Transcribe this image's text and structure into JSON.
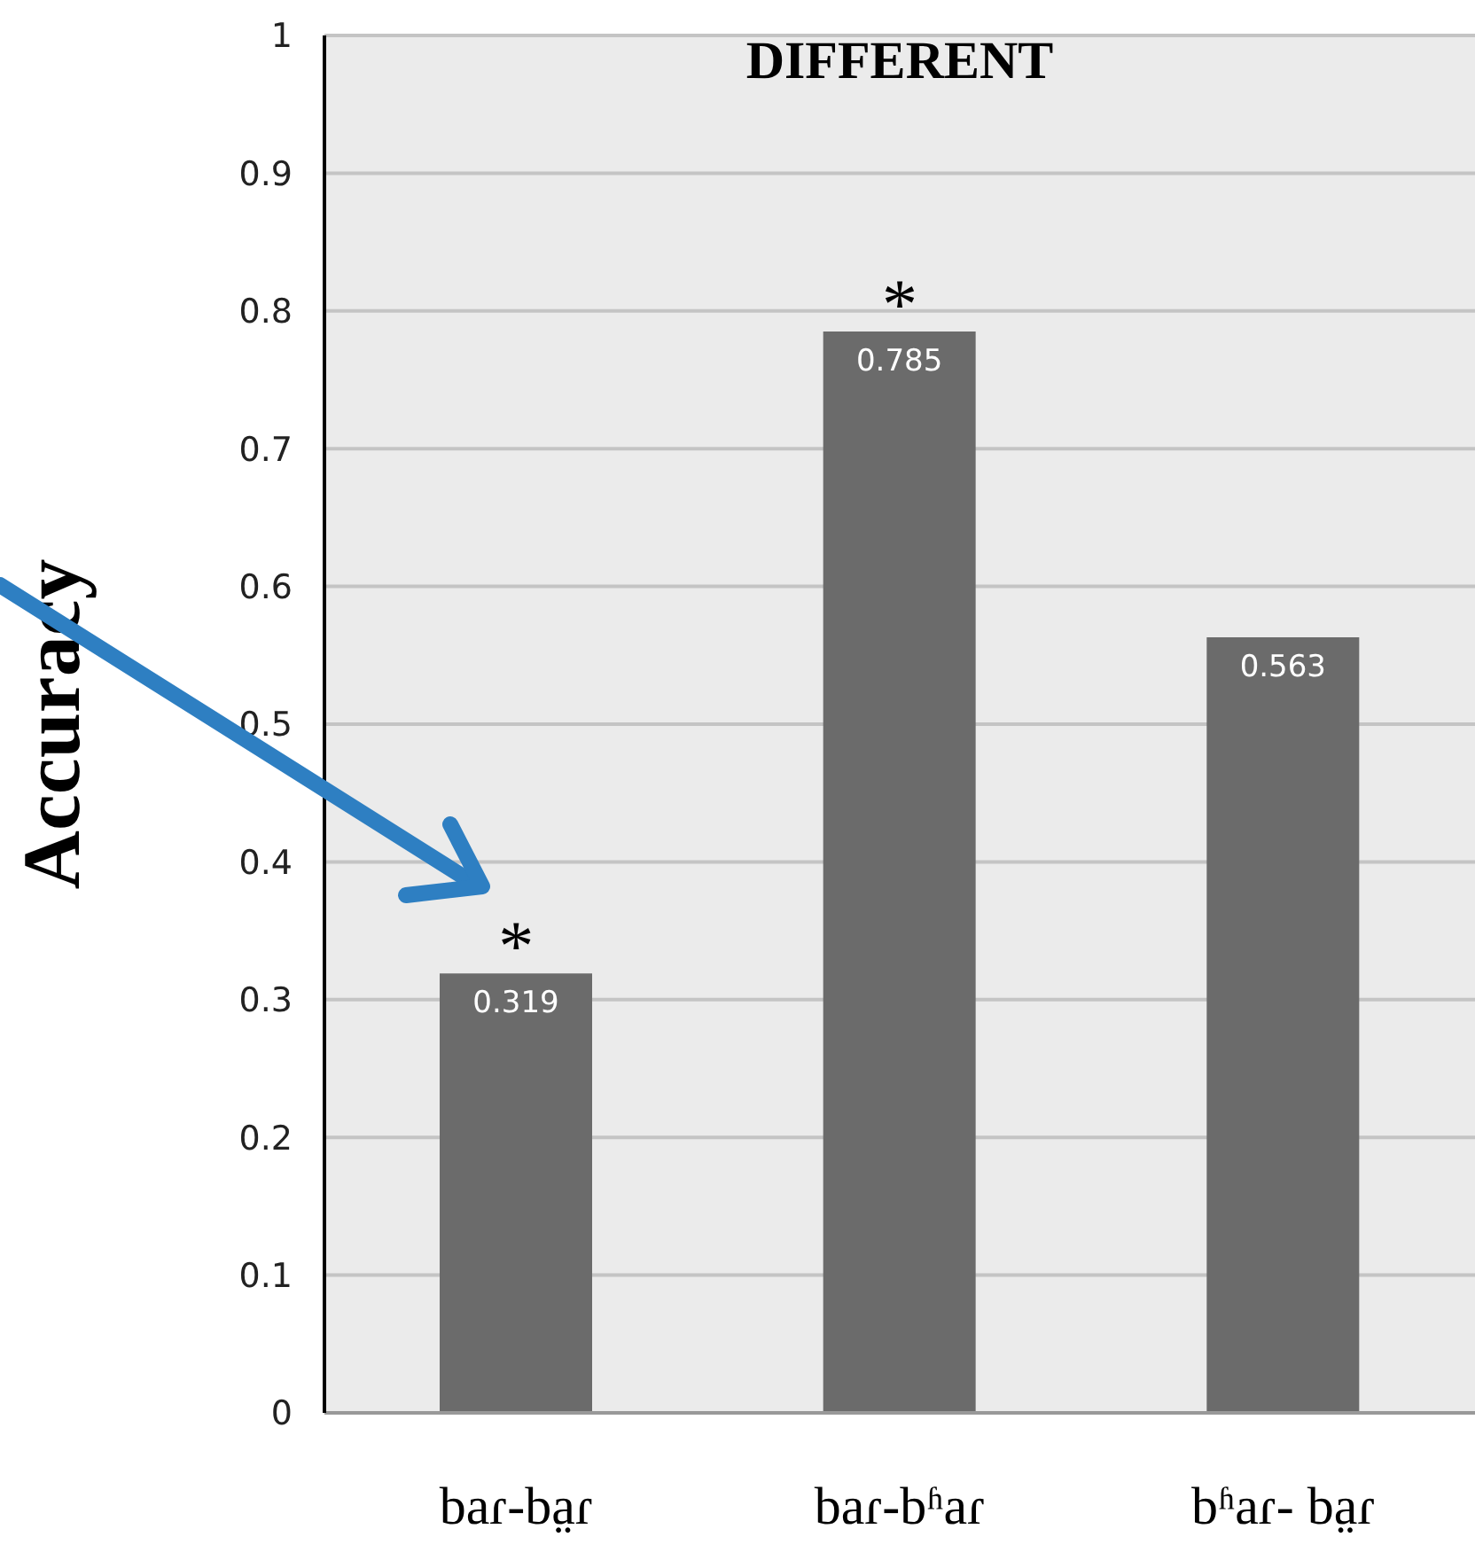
{
  "chart_data": {
    "type": "bar",
    "title": "DIFFERENT",
    "ylabel": "Accuracy",
    "categories": [
      "baɾ-ba̤ɾ",
      "baɾ-bʱaɾ",
      "bʱaɾ- ba̤ɾ"
    ],
    "values": [
      0.319,
      0.785,
      0.563
    ],
    "color": "#6b6b6b",
    "ylim": [
      0,
      1
    ],
    "yticks": [
      0,
      0.1,
      0.2,
      0.3,
      0.4,
      0.5,
      0.6,
      0.7,
      0.8,
      0.9,
      1
    ],
    "grid": "y",
    "legend": false,
    "data_labels": true,
    "annotations": [
      {
        "text": "*",
        "x": "baɾ-ba̤ɾ",
        "y": 0.319
      },
      {
        "text": "*",
        "x": "baɾ-bʱaɾ",
        "y": 0.785
      }
    ]
  }
}
